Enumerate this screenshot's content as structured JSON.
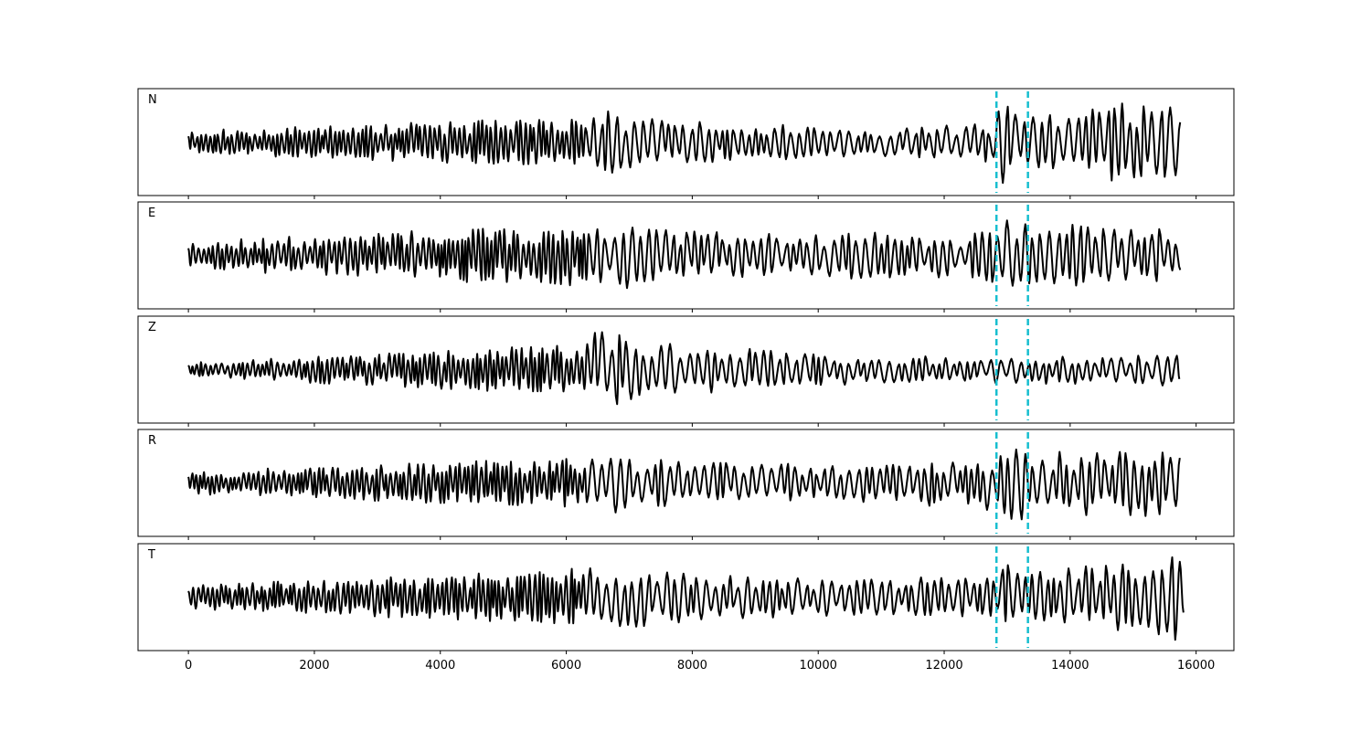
{
  "chart_data": {
    "type": "line",
    "layout": "stacked-subplots",
    "shared_x": true,
    "xlim": [
      -800,
      16600
    ],
    "x_ticks": [
      0,
      2000,
      4000,
      6000,
      8000,
      10000,
      12000,
      14000,
      16000
    ],
    "x_tick_labels": [
      "0",
      "2000",
      "4000",
      "6000",
      "8000",
      "10000",
      "12000",
      "14000",
      "16000"
    ],
    "x_range": [
      0,
      15800
    ],
    "y_ticks_visible": false,
    "grid": false,
    "line_color": "#000000",
    "marker_color": "#17becf",
    "vertical_markers": [
      12830,
      13330
    ],
    "panels": [
      {
        "label": "N",
        "seed": 11,
        "ylim": [
          -1.15,
          1.15
        ],
        "segments": [
          [
            0,
            0.25
          ],
          [
            6300,
            0.55
          ],
          [
            6600,
            0.7
          ],
          [
            8000,
            0.45
          ],
          [
            11200,
            0.3
          ],
          [
            12800,
            0.45
          ],
          [
            12950,
            0.95
          ],
          [
            13400,
            0.55
          ],
          [
            14200,
            0.8
          ],
          [
            15800,
            0.9
          ]
        ]
      },
      {
        "label": "E",
        "seed": 23,
        "ylim": [
          -1.15,
          1.15
        ],
        "segments": [
          [
            0,
            0.3
          ],
          [
            6300,
            0.7
          ],
          [
            7000,
            0.85
          ],
          [
            7800,
            0.55
          ],
          [
            10000,
            0.5
          ],
          [
            12600,
            0.5
          ],
          [
            12950,
            0.95
          ],
          [
            13400,
            0.7
          ],
          [
            14500,
            0.7
          ],
          [
            15800,
            0.55
          ]
        ]
      },
      {
        "label": "Z",
        "seed": 37,
        "ylim": [
          -1.15,
          1.15
        ],
        "segments": [
          [
            0,
            0.18
          ],
          [
            6200,
            0.55
          ],
          [
            6600,
            0.95
          ],
          [
            7200,
            0.6
          ],
          [
            9500,
            0.4
          ],
          [
            11000,
            0.3
          ],
          [
            13000,
            0.3
          ],
          [
            15800,
            0.35
          ]
        ]
      },
      {
        "label": "R",
        "seed": 53,
        "ylim": [
          -1.15,
          1.15
        ],
        "segments": [
          [
            0,
            0.25
          ],
          [
            6300,
            0.55
          ],
          [
            6800,
            0.7
          ],
          [
            8000,
            0.45
          ],
          [
            10000,
            0.4
          ],
          [
            12600,
            0.55
          ],
          [
            12950,
            0.95
          ],
          [
            13400,
            0.7
          ],
          [
            14500,
            0.75
          ],
          [
            15800,
            0.7
          ]
        ]
      },
      {
        "label": "T",
        "seed": 71,
        "ylim": [
          -1.15,
          1.15
        ],
        "segments": [
          [
            0,
            0.25
          ],
          [
            6600,
            0.65
          ],
          [
            7000,
            0.65
          ],
          [
            8000,
            0.55
          ],
          [
            10000,
            0.4
          ],
          [
            12800,
            0.45
          ],
          [
            12950,
            0.95
          ],
          [
            13400,
            0.55
          ],
          [
            14400,
            0.7
          ],
          [
            15800,
            0.95
          ]
        ]
      }
    ]
  }
}
